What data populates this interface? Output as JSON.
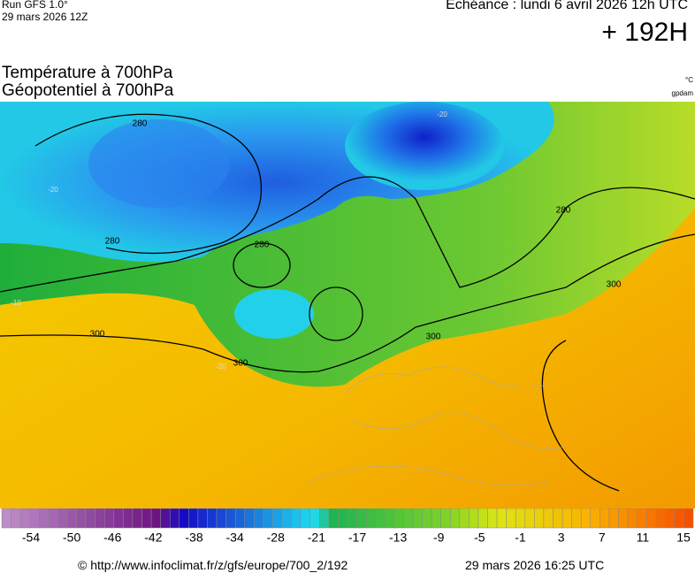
{
  "header": {
    "run": "Run GFS 1.0°",
    "run_date": "29 mars 2026 12Z",
    "echeance": "Echéance : lundi 6 avril 2026 12h UTC",
    "lead": "+ 192H",
    "title_1": "Température à 700hPa",
    "title_2": "Géopotentiel à 700hPa",
    "unit_1": "°C",
    "unit_2": "gpdam"
  },
  "map": {
    "contour_labels": [
      "280",
      "280",
      "280",
      "280",
      "300",
      "300",
      "300",
      "300",
      "-20",
      "-20",
      "-20",
      "-10"
    ]
  },
  "colorbar": {
    "labels": [
      "-54",
      "-50",
      "-46",
      "-42",
      "-38",
      "-34",
      "-28",
      "-21",
      "-17",
      "-13",
      "-9",
      "-5",
      "-1",
      "3",
      "7",
      "11",
      "15"
    ]
  },
  "footer": {
    "url": "© http://www.infoclimat.fr/z/gfs/europe/700_2/192",
    "timestamp": "29 mars 2026 16:25 UTC"
  }
}
